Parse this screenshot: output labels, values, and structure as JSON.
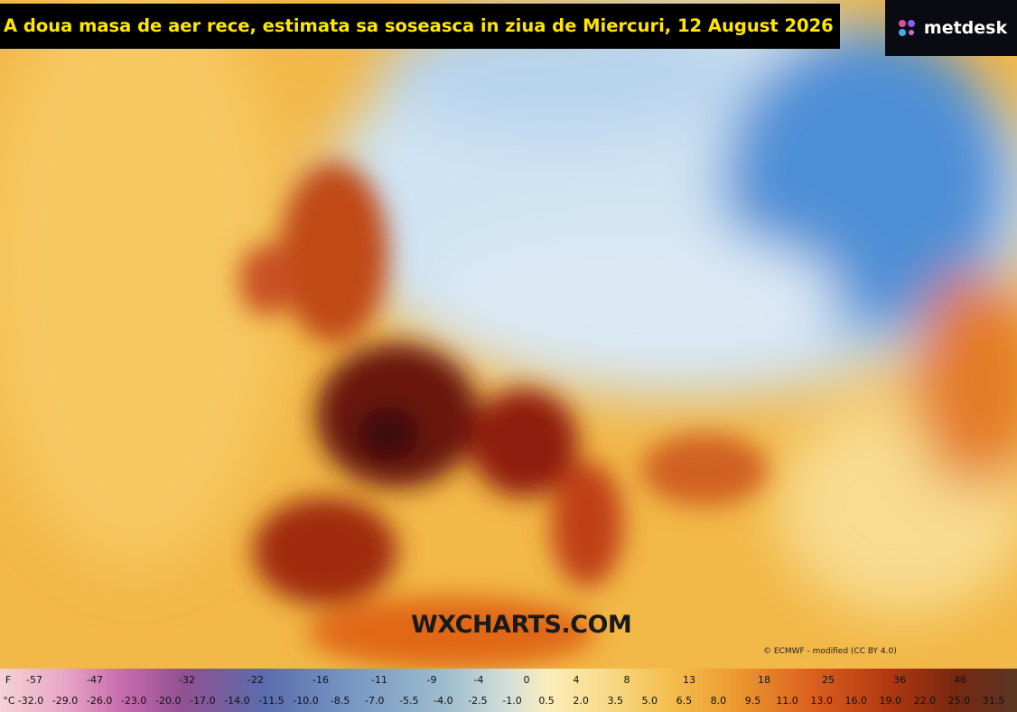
{
  "header": {
    "title": "A doua masa de aer rece, estimata sa soseasca in ziua de Miercuri, 12 August 2026"
  },
  "logo": "metdesk",
  "watermark": "WXCHARTS.COM",
  "credit": "© ECMWF - modified (CC BY 4.0)",
  "legend": {
    "f_unit": "F",
    "f_labels": [
      "-57",
      "-47",
      "-32",
      "-22",
      "-16",
      "-11",
      "-9",
      "-4",
      "0",
      "4",
      "8",
      "13",
      "18",
      "25",
      "36",
      "46"
    ],
    "c_unit": "°C",
    "c_labels": [
      "-32.0",
      "-29.0",
      "-26.0",
      "-23.0",
      "-20.0",
      "-17.0",
      "-14.0",
      "-11.5",
      "-10.0",
      "-8.5",
      "-7.0",
      "-5.5",
      "-4.0",
      "-2.5",
      "-1.0",
      "0.5",
      "2.0",
      "3.5",
      "5.0",
      "6.5",
      "8.0",
      "9.5",
      "11.0",
      "13.0",
      "16.0",
      "19.0",
      "22.0",
      "25.0",
      "31.5"
    ]
  }
}
